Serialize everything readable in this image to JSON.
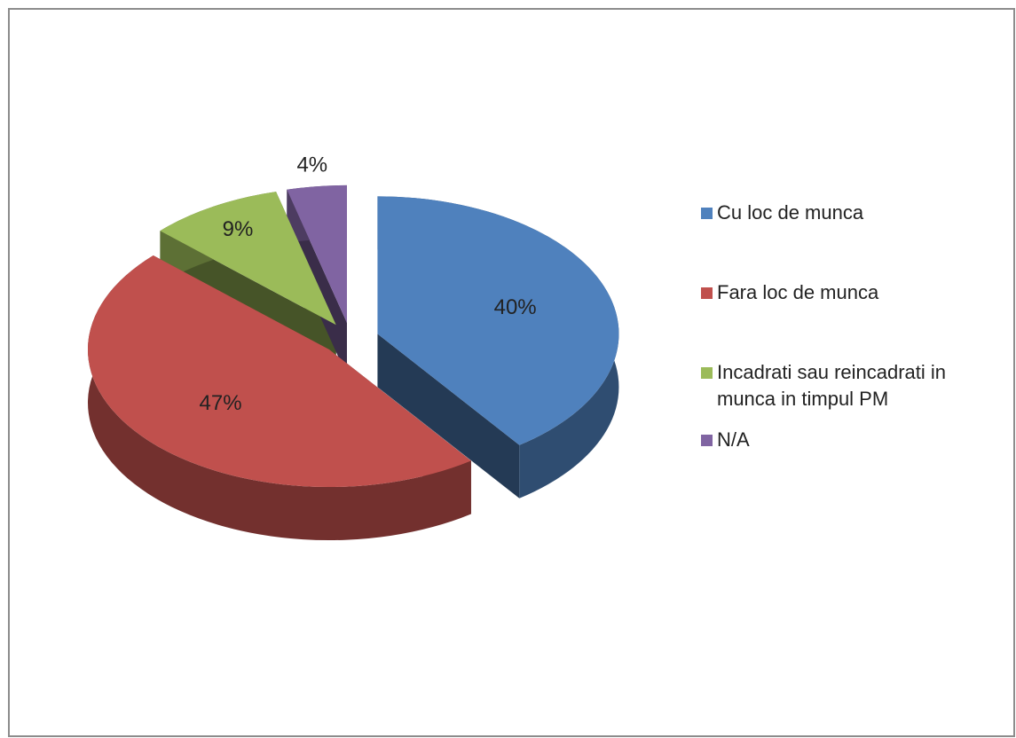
{
  "chart_data": {
    "type": "pie",
    "categories": [
      "Cu loc de munca",
      "Fara loc de munca",
      "Incadrati sau reincadrati in munca in timpul PM",
      "N/A"
    ],
    "values": [
      40,
      47,
      9,
      4
    ],
    "value_labels": [
      "40%",
      "47%",
      "9%",
      "4%"
    ],
    "colors": [
      "#4f81bd",
      "#c0504d",
      "#9bbb59",
      "#8064a2"
    ],
    "legend": "right"
  }
}
